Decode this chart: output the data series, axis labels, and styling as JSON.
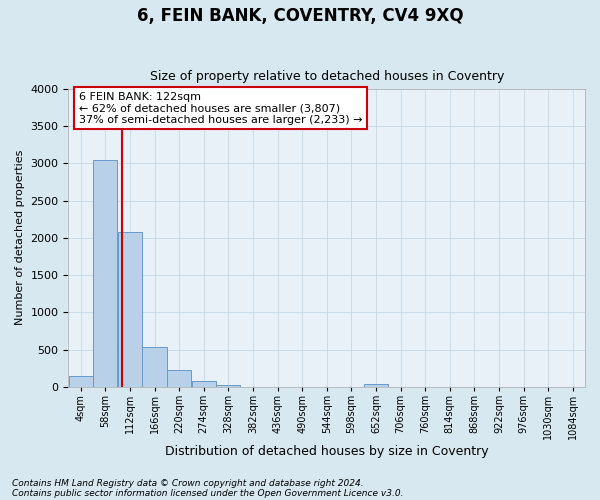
{
  "title": "6, FEIN BANK, COVENTRY, CV4 9XQ",
  "subtitle": "Size of property relative to detached houses in Coventry",
  "xlabel": "Distribution of detached houses by size in Coventry",
  "ylabel": "Number of detached properties",
  "footnote1": "Contains HM Land Registry data © Crown copyright and database right 2024.",
  "footnote2": "Contains public sector information licensed under the Open Government Licence v3.0.",
  "bin_starts": [
    4,
    58,
    112,
    166,
    220,
    274,
    328,
    382,
    436,
    490,
    544,
    598,
    652,
    706,
    760,
    814,
    868,
    922,
    976,
    1030,
    1084
  ],
  "bar_heights": [
    150,
    3050,
    2080,
    540,
    220,
    75,
    30,
    0,
    0,
    0,
    0,
    0,
    40,
    0,
    0,
    0,
    0,
    0,
    0,
    0,
    0
  ],
  "bin_width": 54,
  "bar_color": "#b8d0e8",
  "bar_edge_color": "#6699cc",
  "vline_x": 122,
  "vline_color": "#cc0000",
  "ylim_max": 4000,
  "yticks": [
    0,
    500,
    1000,
    1500,
    2000,
    2500,
    3000,
    3500,
    4000
  ],
  "annotation_line1": "6 FEIN BANK: 122sqm",
  "annotation_line2": "← 62% of detached houses are smaller (3,807)",
  "annotation_line3": "37% of semi-detached houses are larger (2,233) →",
  "annotation_box_edge_color": "#cc0000",
  "annotation_box_bg": "#ffffff",
  "grid_color": "#c5d9e8",
  "bg_color": "#d8e8f0",
  "plot_bg_color": "#e8f0f8",
  "title_fontsize": 12,
  "subtitle_fontsize": 9,
  "ylabel_fontsize": 8,
  "xlabel_fontsize": 9,
  "annotation_fontsize": 8,
  "tick_fontsize": 7,
  "footnote_fontsize": 6.5
}
